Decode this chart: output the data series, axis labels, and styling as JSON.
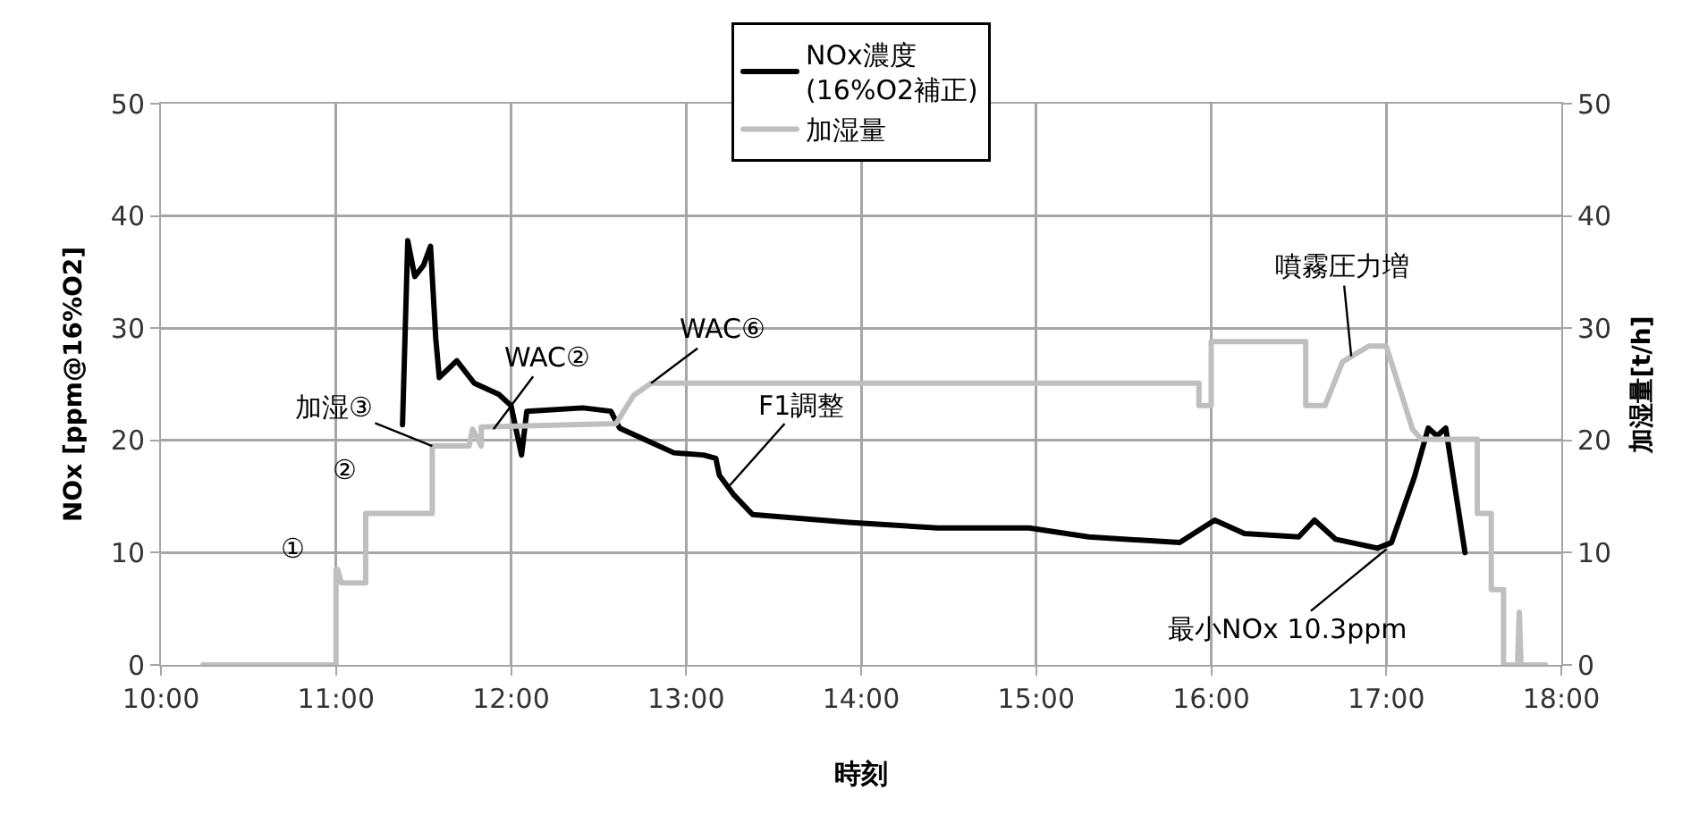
{
  "chart_data": {
    "type": "line",
    "xlabel": "時刻",
    "ylabel": "NOx [ppm@16%O2]",
    "y2label": "加湿量[t/h]",
    "xlim": [
      10,
      18
    ],
    "xticks": [
      {
        "value": 10,
        "label": "10:00"
      },
      {
        "value": 11,
        "label": "11:00"
      },
      {
        "value": 12,
        "label": "12:00"
      },
      {
        "value": 13,
        "label": "13:00"
      },
      {
        "value": 14,
        "label": "14:00"
      },
      {
        "value": 15,
        "label": "15:00"
      },
      {
        "value": 16,
        "label": "16:00"
      },
      {
        "value": 17,
        "label": "17:00"
      },
      {
        "value": 18,
        "label": "18:00"
      }
    ],
    "ylim": [
      0,
      50
    ],
    "yticks": [
      0,
      10,
      20,
      30,
      40,
      50
    ],
    "y2lim": [
      0,
      50
    ],
    "y2ticks": [
      0,
      10,
      20,
      30,
      40,
      50
    ],
    "grid": true,
    "legend": "top",
    "marker": "none",
    "line_style": "solid",
    "series": [
      {
        "name": "NOx濃度\n(16%O2補正)",
        "color": "#000000",
        "x": [
          11.38,
          11.41,
          11.45,
          11.5,
          11.54,
          11.57,
          11.59,
          11.69,
          11.79,
          11.93,
          12.0,
          12.06,
          12.09,
          12.41,
          12.57,
          12.62,
          12.76,
          12.93,
          13.1,
          13.17,
          13.19,
          13.27,
          13.38,
          13.93,
          14.44,
          14.96,
          15.3,
          15.82,
          15.9,
          16.02,
          16.19,
          16.5,
          16.59,
          16.71,
          16.95,
          17.03,
          17.16,
          17.24,
          17.29,
          17.34,
          17.45
        ],
        "values": [
          21.4,
          37.8,
          34.6,
          35.6,
          37.3,
          29.1,
          25.6,
          27.1,
          25.1,
          24.1,
          23.1,
          18.7,
          22.6,
          22.9,
          22.6,
          21.1,
          20.1,
          18.9,
          18.7,
          18.4,
          16.9,
          15.2,
          13.4,
          12.7,
          12.2,
          12.2,
          11.4,
          10.9,
          11.7,
          12.9,
          11.7,
          11.4,
          12.9,
          11.2,
          10.4,
          10.9,
          16.7,
          21.1,
          20.4,
          21.1,
          10.0
        ]
      },
      {
        "name": "加湿量",
        "color": "#bfbfbf",
        "axis": "y2",
        "x": [
          10.24,
          11.0,
          11.0,
          11.01,
          11.03,
          11.17,
          11.17,
          11.55,
          11.55,
          11.76,
          11.78,
          11.83,
          11.83,
          12.6,
          12.7,
          12.8,
          15.93,
          15.93,
          16.0,
          16.0,
          16.54,
          16.54,
          16.65,
          16.75,
          16.9,
          17.0,
          17.15,
          17.2,
          17.52,
          17.52,
          17.6,
          17.6,
          17.67,
          17.67,
          17.75,
          17.76,
          17.77,
          17.91
        ],
        "values": [
          0,
          0,
          8.5,
          8.5,
          7.3,
          7.3,
          13.5,
          13.5,
          19.5,
          19.5,
          21,
          19.5,
          21.2,
          21.5,
          24,
          25.1,
          25.1,
          23.1,
          23.1,
          28.8,
          28.8,
          23.1,
          23.1,
          27,
          28.4,
          28.4,
          21,
          20.1,
          20.1,
          13.5,
          13.5,
          6.7,
          6.7,
          0,
          0,
          4.7,
          0,
          0
        ]
      }
    ],
    "annotations": [
      {
        "text": "①",
        "x": 11.0,
        "y": 8.5
      },
      {
        "text": "②",
        "x": 11.17,
        "y": 13.5
      },
      {
        "text": "加湿③",
        "x": 11.55,
        "y": 19.5
      },
      {
        "text": "WAC②",
        "x": 11.9,
        "y": 21
      },
      {
        "text": "WAC⑥",
        "x": 12.8,
        "y": 25.1
      },
      {
        "text": "F1調整",
        "x": 13.25,
        "y": 16
      },
      {
        "text": "噴霧圧力増",
        "x": 16.8,
        "y": 27.5
      },
      {
        "text": "最小NOx 10.3ppm",
        "x": 17.0,
        "y": 10.3
      }
    ]
  }
}
